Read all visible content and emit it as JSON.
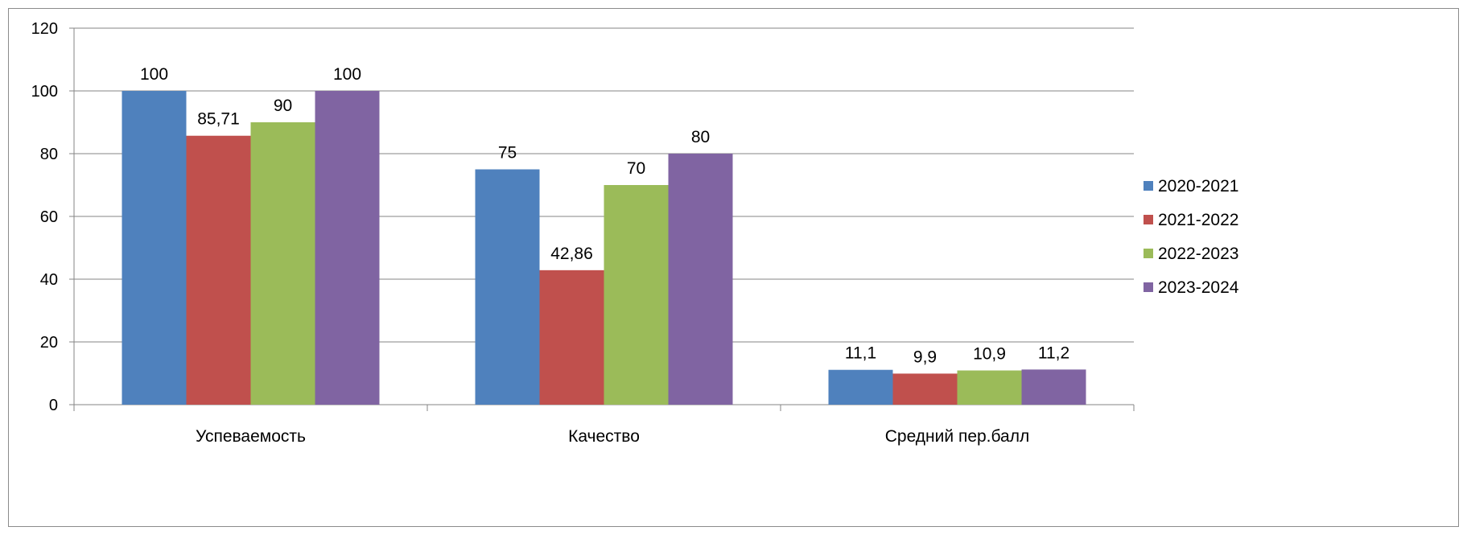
{
  "chart_data": {
    "type": "bar",
    "title": "",
    "xlabel": "",
    "ylabel": "",
    "categories": [
      "Успеваемость",
      "Качество",
      "Средний пер.балл"
    ],
    "series": [
      {
        "name": "2020-2021",
        "color": "#4f81bd",
        "values": [
          100,
          75,
          11.1
        ],
        "labels": [
          "100",
          "75",
          "11,1"
        ]
      },
      {
        "name": "2021-2022",
        "color": "#c0504d",
        "values": [
          85.71,
          42.86,
          9.9
        ],
        "labels": [
          "85,71",
          "42,86",
          "9,9"
        ]
      },
      {
        "name": "2022-2023",
        "color": "#9bbb59",
        "values": [
          90,
          70,
          10.9
        ],
        "labels": [
          "90",
          "70",
          "10,9"
        ]
      },
      {
        "name": "2023-2024",
        "color": "#8064a2",
        "values": [
          100,
          80,
          11.2
        ],
        "labels": [
          "100",
          "80",
          "11,2"
        ]
      }
    ],
    "ylim": [
      0,
      120
    ],
    "yticks": [
      0,
      20,
      40,
      60,
      80,
      100,
      120
    ],
    "grid": true,
    "legend_position": "right"
  }
}
